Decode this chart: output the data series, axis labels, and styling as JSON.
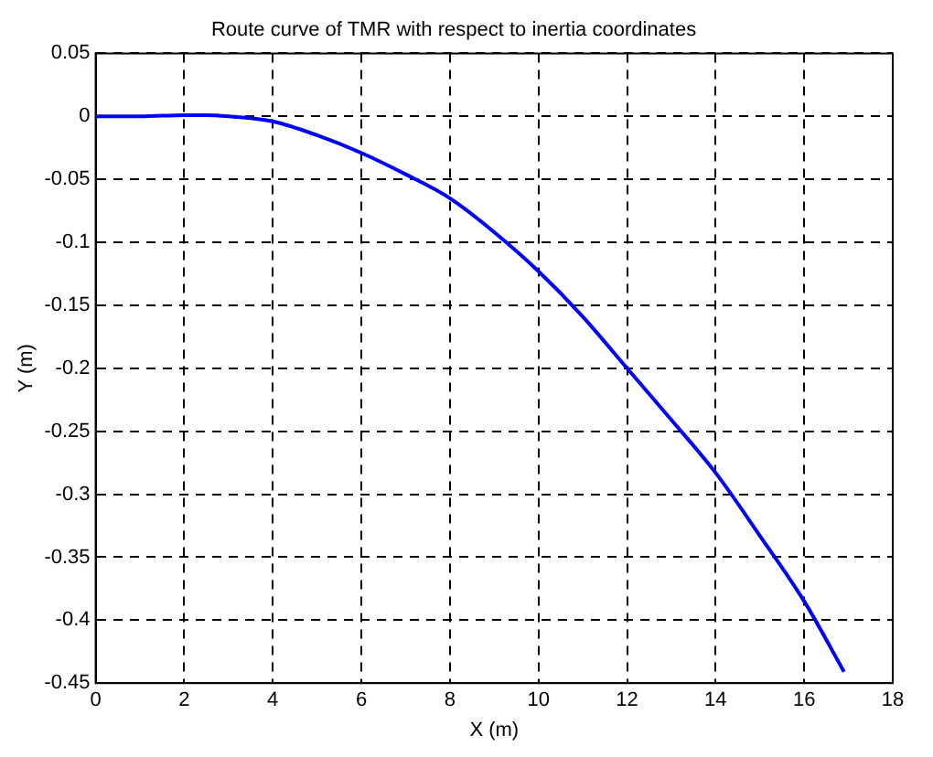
{
  "chart_data": {
    "type": "line",
    "title": "Route curve of TMR with respect to inertia coordinates",
    "xlabel": "X (m)",
    "ylabel": "Y (m)",
    "series": [
      {
        "color": "#0000ff",
        "x": [
          0,
          1,
          2,
          2.5,
          3,
          4,
          5,
          6,
          7,
          8,
          9,
          10,
          11,
          12,
          13,
          14,
          15,
          16,
          16.9
        ],
        "values": [
          0,
          0,
          0.001,
          0.001,
          0,
          -0.004,
          -0.015,
          -0.029,
          -0.046,
          -0.065,
          -0.092,
          -0.123,
          -0.159,
          -0.2,
          -0.241,
          -0.283,
          -0.333,
          -0.385,
          -0.441
        ]
      }
    ],
    "xlim": [
      0,
      18
    ],
    "xticks": [
      0,
      2,
      4,
      6,
      8,
      10,
      12,
      14,
      16,
      18
    ],
    "ylim": [
      -0.45,
      0.05
    ],
    "yticks": [
      -0.45,
      -0.4,
      -0.35,
      -0.3,
      -0.25,
      -0.2,
      -0.15,
      -0.1,
      -0.05,
      0,
      0.05
    ],
    "grid": true,
    "legend": false,
    "marker": "none",
    "line_style": "solid"
  }
}
